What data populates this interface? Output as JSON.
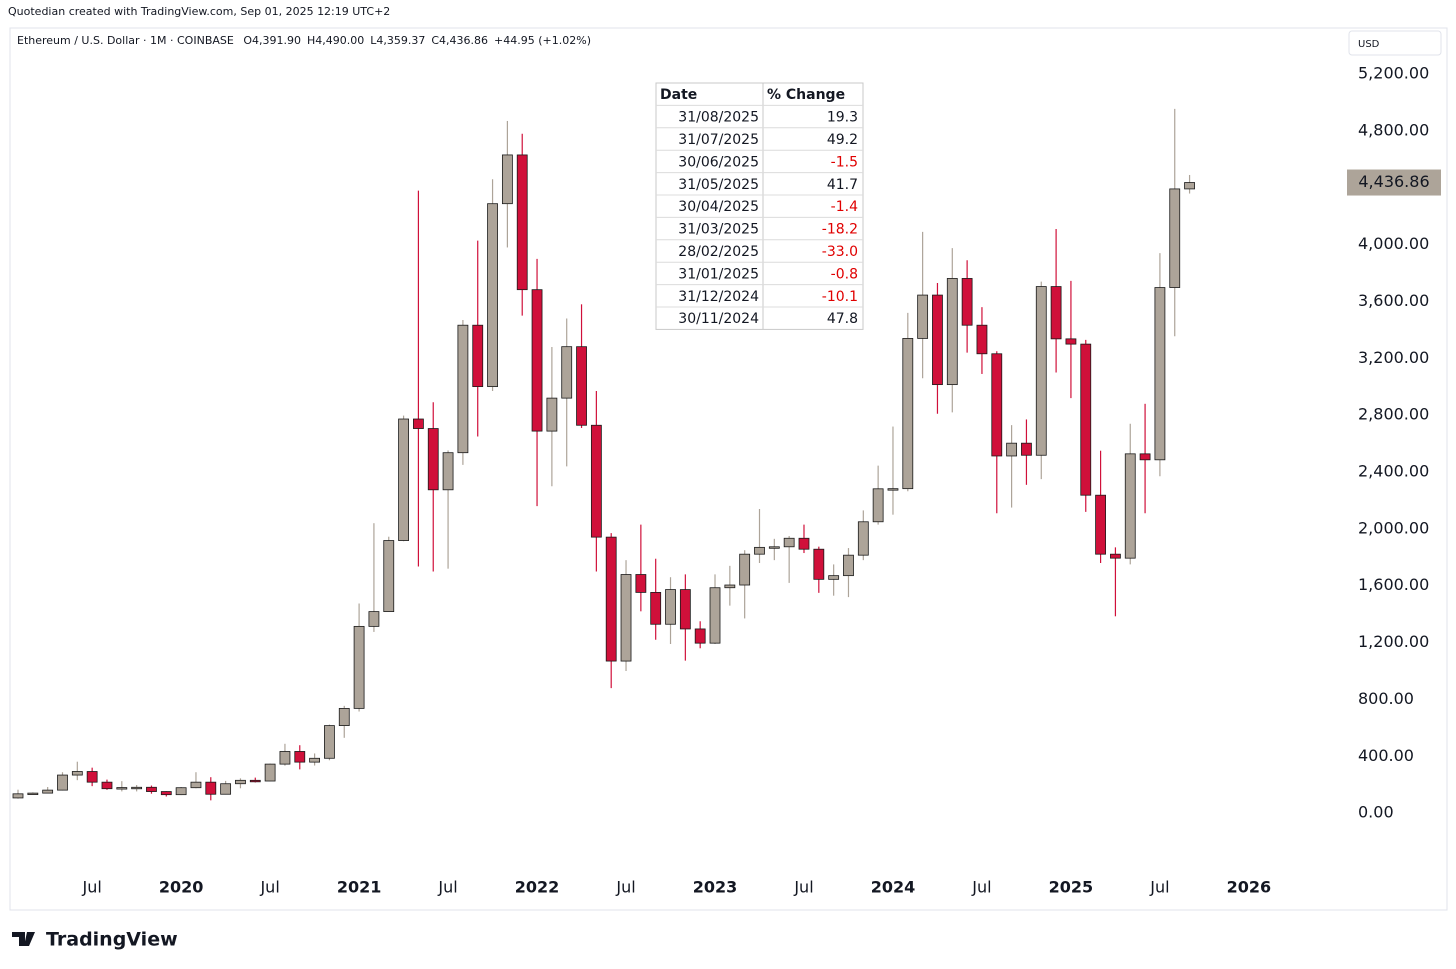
{
  "chart_data": {
    "type": "candlestick",
    "credit": "Quotedian created with TradingView.com, Sep 01, 2025 12:19 UTC+2",
    "title": "Ethereum / U.S. Dollar · 1M · COINBASE",
    "ohlc_text": [
      "O4,391.90",
      "H4,490.00",
      "L4,359.37",
      "C4,436.86",
      "+44.95 (+1.02%)"
    ],
    "y_unit": "USD",
    "brand": "TradingView",
    "up_color": "#ada499",
    "down_color": "#d0103a",
    "border_color": "#1a1a1a",
    "x": [
      "2019-02",
      "2019-03",
      "2019-04",
      "2019-05",
      "2019-06",
      "2019-07",
      "2019-08",
      "2019-09",
      "2019-10",
      "2019-11",
      "2019-12",
      "2020-01",
      "2020-02",
      "2020-03",
      "2020-04",
      "2020-05",
      "2020-06",
      "2020-07",
      "2020-08",
      "2020-09",
      "2020-10",
      "2020-11",
      "2020-12",
      "2021-01",
      "2021-02",
      "2021-03",
      "2021-04",
      "2021-05",
      "2021-06",
      "2021-07",
      "2021-08",
      "2021-09",
      "2021-10",
      "2021-11",
      "2021-12",
      "2022-01",
      "2022-02",
      "2022-03",
      "2022-04",
      "2022-05",
      "2022-06",
      "2022-07",
      "2022-08",
      "2022-09",
      "2022-10",
      "2022-11",
      "2022-12",
      "2023-01",
      "2023-02",
      "2023-03",
      "2023-04",
      "2023-05",
      "2023-06",
      "2023-07",
      "2023-08",
      "2023-09",
      "2023-10",
      "2023-11",
      "2023-12",
      "2024-01",
      "2024-02",
      "2024-03",
      "2024-04",
      "2024-05",
      "2024-06",
      "2024-07",
      "2024-08",
      "2024-09",
      "2024-10",
      "2024-11",
      "2024-12",
      "2025-01",
      "2025-02",
      "2025-03",
      "2025-04",
      "2025-05",
      "2025-06",
      "2025-07",
      "2025-08",
      "2025-09"
    ],
    "open": [
      107,
      136,
      141,
      162,
      268,
      293,
      218,
      172,
      180,
      182,
      152,
      130,
      179,
      218,
      133,
      207,
      231,
      226,
      345,
      434,
      359,
      386,
      616,
      737,
      1314,
      1418,
      1918,
      2773,
      2706,
      2275,
      2536,
      3433,
      3001,
      4288,
      4631,
      3683,
      2688,
      2920,
      3282,
      2729,
      1942,
      1070,
      1679,
      1553,
      1329,
      1573,
      1296,
      1196,
      1586,
      1605,
      1822,
      1870,
      1874,
      1934,
      1857,
      1645,
      1671,
      1815,
      2050,
      2282,
      2283,
      3340,
      3645,
      3015,
      3762,
      3433,
      3232,
      2513,
      2603,
      2518,
      3705,
      3337,
      3300,
      2237,
      1822,
      1794,
      2528,
      2486,
      3698,
      4391.9
    ],
    "high": [
      165,
      146,
      184,
      288,
      362,
      320,
      236,
      225,
      198,
      194,
      154,
      184,
      288,
      253,
      227,
      245,
      250,
      349,
      488,
      478,
      420,
      623,
      755,
      1475,
      2040,
      1945,
      2797,
      4380,
      2891,
      2552,
      3470,
      4028,
      4460,
      4870,
      4780,
      3900,
      3280,
      3480,
      3580,
      2970,
      1970,
      1780,
      2030,
      1790,
      1660,
      1680,
      1350,
      1680,
      1740,
      1850,
      2140,
      1930,
      1950,
      2030,
      1875,
      1750,
      1865,
      2130,
      2445,
      2720,
      3520,
      4090,
      3730,
      3975,
      3890,
      3560,
      3250,
      2730,
      2770,
      3740,
      4110,
      3745,
      3330,
      2550,
      1870,
      2740,
      2880,
      3940,
      4955,
      4490
    ],
    "low": [
      102,
      128,
      140,
      159,
      232,
      190,
      164,
      153,
      153,
      137,
      117,
      127,
      175,
      90,
      131,
      175,
      216,
      225,
      334,
      308,
      335,
      372,
      530,
      715,
      1275,
      1416,
      1913,
      1735,
      1700,
      1720,
      2450,
      2650,
      2970,
      3980,
      3500,
      2160,
      2300,
      2440,
      2710,
      1700,
      880,
      1000,
      1420,
      1220,
      1190,
      1073,
      1160,
      1190,
      1460,
      1370,
      1760,
      1780,
      1620,
      1830,
      1550,
      1530,
      1520,
      1780,
      2030,
      2100,
      2265,
      3060,
      2810,
      2820,
      3240,
      3090,
      2110,
      2150,
      2310,
      2350,
      3100,
      2920,
      2120,
      1760,
      1385,
      1750,
      2110,
      2370,
      3355,
      4359.37
    ],
    "close": [
      136,
      141,
      162,
      268,
      293,
      218,
      172,
      180,
      182,
      152,
      130,
      179,
      218,
      133,
      207,
      231,
      226,
      345,
      434,
      359,
      386,
      616,
      737,
      1314,
      1418,
      1918,
      2773,
      2706,
      2275,
      2536,
      3433,
      3001,
      4288,
      4631,
      3683,
      2688,
      2920,
      3282,
      2729,
      1942,
      1070,
      1679,
      1553,
      1329,
      1573,
      1296,
      1196,
      1586,
      1605,
      1822,
      1870,
      1874,
      1934,
      1857,
      1645,
      1671,
      1815,
      2050,
      2282,
      2283,
      3340,
      3645,
      3015,
      3762,
      3433,
      3232,
      2513,
      2603,
      2518,
      3705,
      3337,
      3300,
      2237,
      1822,
      1794,
      2528,
      2486,
      3698,
      4391.9,
      4436.86
    ],
    "last_price": {
      "value": 4436.86,
      "label": "4,436.86"
    },
    "ylim": [
      -400,
      5510
    ],
    "yticks": [
      {
        "value": 0,
        "label": "0.00"
      },
      {
        "value": 400,
        "label": "400.00"
      },
      {
        "value": 800,
        "label": "800.00"
      },
      {
        "value": 1200,
        "label": "1,200.00"
      },
      {
        "value": 1600,
        "label": "1,600.00"
      },
      {
        "value": 2000,
        "label": "2,000.00"
      },
      {
        "value": 2400,
        "label": "2,400.00"
      },
      {
        "value": 2800,
        "label": "2,800.00"
      },
      {
        "value": 3200,
        "label": "3,200.00"
      },
      {
        "value": 3600,
        "label": "3,600.00"
      },
      {
        "value": 4000,
        "label": "4,000.00"
      },
      {
        "value": 4400,
        "label": "4,400.00"
      },
      {
        "value": 4800,
        "label": "4,800.00"
      },
      {
        "value": 5200,
        "label": "5,200.00"
      }
    ],
    "xticks": [
      {
        "value": "2019-07",
        "label": "Jul"
      },
      {
        "value": "2020-01",
        "label": "2020"
      },
      {
        "value": "2020-07",
        "label": "Jul"
      },
      {
        "value": "2021-01",
        "label": "2021"
      },
      {
        "value": "2021-07",
        "label": "Jul"
      },
      {
        "value": "2022-01",
        "label": "2022"
      },
      {
        "value": "2022-07",
        "label": "Jul"
      },
      {
        "value": "2023-01",
        "label": "2023"
      },
      {
        "value": "2023-07",
        "label": "Jul"
      },
      {
        "value": "2024-01",
        "label": "2024"
      },
      {
        "value": "2024-07",
        "label": "Jul"
      },
      {
        "value": "2025-01",
        "label": "2025"
      },
      {
        "value": "2025-07",
        "label": "Jul"
      },
      {
        "value": "2026-01",
        "label": "2026"
      }
    ],
    "table": {
      "columns": [
        "Date",
        "% Change"
      ],
      "rows": [
        [
          "31/08/2025",
          19.3
        ],
        [
          "31/07/2025",
          49.2
        ],
        [
          "30/06/2025",
          -1.5
        ],
        [
          "31/05/2025",
          41.7
        ],
        [
          "30/04/2025",
          -1.4
        ],
        [
          "31/03/2025",
          -18.2
        ],
        [
          "28/02/2025",
          {
            "value": -33,
            "label": "-33.0"
          }
        ],
        [
          "31/01/2025",
          -0.8
        ],
        [
          "31/12/2024",
          -10.1
        ],
        [
          "30/11/2024",
          47.8
        ]
      ]
    }
  }
}
